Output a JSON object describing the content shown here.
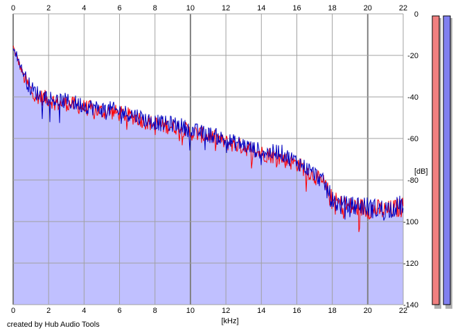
{
  "credit": "created by Hub Audio Tools",
  "chart_data": {
    "type": "area",
    "title": "",
    "xlabel": "[kHz]",
    "ylabel": "[dB]",
    "xlim": [
      0,
      22
    ],
    "ylim": [
      -140,
      0
    ],
    "x_ticks": [
      0,
      2,
      4,
      6,
      8,
      10,
      12,
      14,
      16,
      18,
      20,
      22
    ],
    "y_ticks": [
      0,
      -20,
      -40,
      -60,
      -80,
      -100,
      -120,
      -140
    ],
    "x_tick_labels": [
      "0",
      "2",
      "4",
      "6",
      "8",
      "10",
      "12",
      "14",
      "16",
      "18",
      "20",
      "22"
    ],
    "y_tick_labels": [
      "0",
      "-20",
      "-40",
      "-60",
      "-80",
      "-100",
      "-120",
      "-140"
    ],
    "grid": true,
    "fill_color": "#c0c0ff",
    "series": [
      {
        "color": "#ff0000",
        "x": [
          0,
          0.25,
          0.5,
          0.75,
          1,
          1.5,
          2,
          2.5,
          3,
          3.5,
          4,
          4.5,
          5,
          5.5,
          6,
          6.5,
          7,
          7.5,
          8,
          8.5,
          9,
          9.5,
          10,
          10.5,
          11,
          11.5,
          12,
          12.5,
          13,
          13.5,
          14,
          14.5,
          15,
          15.5,
          16,
          16.5,
          17,
          17.5,
          18,
          18.5,
          19,
          19.5,
          20,
          20.5,
          21,
          21.5,
          22
        ],
        "values": [
          -16,
          -22,
          -28,
          -33,
          -37,
          -40,
          -41,
          -43,
          -43,
          -44,
          -45,
          -46,
          -47,
          -47,
          -48,
          -49,
          -50,
          -52,
          -53,
          -54,
          -54,
          -55,
          -57,
          -58,
          -59,
          -60,
          -62,
          -63,
          -64,
          -66,
          -67,
          -68,
          -69,
          -71,
          -72,
          -75,
          -78,
          -82,
          -90,
          -92,
          -93,
          -93,
          -94,
          -94,
          -95,
          -94,
          -93
        ]
      },
      {
        "color": "#0000c0",
        "x": [
          0,
          0.25,
          0.5,
          0.75,
          1,
          1.5,
          2,
          2.5,
          3,
          3.5,
          4,
          4.5,
          5,
          5.5,
          6,
          6.5,
          7,
          7.5,
          8,
          8.5,
          9,
          9.5,
          10,
          10.5,
          11,
          11.5,
          12,
          12.5,
          13,
          13.5,
          14,
          14.5,
          15,
          15.5,
          16,
          16.5,
          17,
          17.5,
          18,
          18.5,
          19,
          19.5,
          20,
          20.5,
          21,
          21.5,
          22
        ],
        "values": [
          -15,
          -21,
          -27,
          -32,
          -36,
          -39,
          -40,
          -42,
          -42,
          -43,
          -44,
          -45,
          -46,
          -46,
          -47,
          -48,
          -49,
          -51,
          -52,
          -53,
          -53,
          -54,
          -56,
          -57,
          -58,
          -59,
          -61,
          -62,
          -63,
          -65,
          -66,
          -67,
          -66,
          -69,
          -71,
          -74,
          -77,
          -81,
          -90,
          -92,
          -93,
          -92,
          -93,
          -94,
          -94,
          -93,
          -92
        ]
      }
    ],
    "level_meters": [
      {
        "color": "#f08080"
      },
      {
        "color": "#8080f0"
      }
    ]
  }
}
